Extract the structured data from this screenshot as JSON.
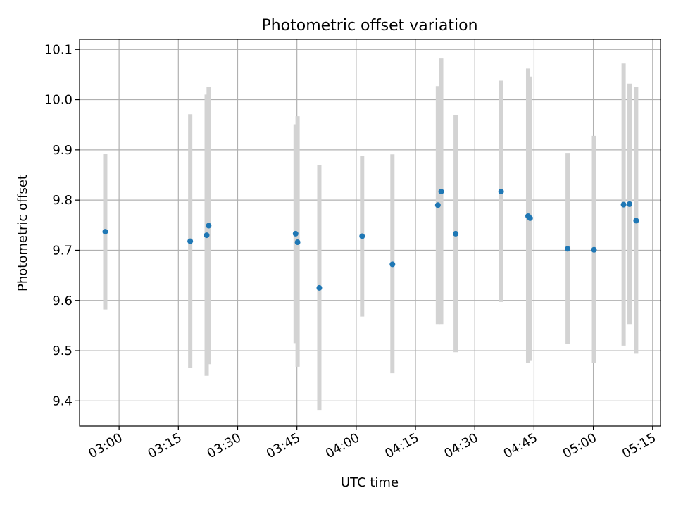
{
  "chart_data": {
    "type": "scatter",
    "title": "Photometric offset variation",
    "xlabel": "UTC time",
    "ylabel": "Photometric offset",
    "grid": true,
    "legend": "none",
    "x_range": [
      "02:50",
      "05:17"
    ],
    "ylim": [
      9.35,
      10.12
    ],
    "x_ticks": [
      "03:00",
      "03:15",
      "03:30",
      "03:45",
      "04:00",
      "04:15",
      "04:30",
      "04:45",
      "05:00",
      "05:15"
    ],
    "y_ticks": [
      "9.4",
      "9.5",
      "9.6",
      "9.7",
      "9.8",
      "9.9",
      "10.0",
      "10.1"
    ],
    "colors": {
      "point": "#1f77b4",
      "errorbar": "#d3d3d3",
      "grid": "#b0b0b0"
    },
    "points": [
      {
        "x": "02:56:30",
        "y": 9.737,
        "ylow": 9.582,
        "yhigh": 9.892
      },
      {
        "x": "03:18:00",
        "y": 9.718,
        "ylow": 9.465,
        "yhigh": 9.971
      },
      {
        "x": "03:22:10",
        "y": 9.73,
        "ylow": 9.45,
        "yhigh": 10.01
      },
      {
        "x": "03:22:40",
        "y": 9.749,
        "ylow": 9.473,
        "yhigh": 10.025
      },
      {
        "x": "03:44:40",
        "y": 9.733,
        "ylow": 9.515,
        "yhigh": 9.951
      },
      {
        "x": "03:45:10",
        "y": 9.716,
        "ylow": 9.468,
        "yhigh": 9.967
      },
      {
        "x": "03:50:40",
        "y": 9.625,
        "ylow": 9.382,
        "yhigh": 9.869
      },
      {
        "x": "04:01:30",
        "y": 9.728,
        "ylow": 9.568,
        "yhigh": 9.888
      },
      {
        "x": "04:09:10",
        "y": 9.672,
        "ylow": 9.455,
        "yhigh": 9.891
      },
      {
        "x": "04:20:40",
        "y": 9.79,
        "ylow": 9.553,
        "yhigh": 10.027
      },
      {
        "x": "04:21:30",
        "y": 9.817,
        "ylow": 9.553,
        "yhigh": 10.082
      },
      {
        "x": "04:25:10",
        "y": 9.733,
        "ylow": 9.497,
        "yhigh": 9.97
      },
      {
        "x": "04:36:40",
        "y": 9.817,
        "ylow": 9.597,
        "yhigh": 10.038
      },
      {
        "x": "04:43:30",
        "y": 9.768,
        "ylow": 9.475,
        "yhigh": 10.062
      },
      {
        "x": "04:44:00",
        "y": 9.764,
        "ylow": 9.481,
        "yhigh": 10.046
      },
      {
        "x": "04:53:30",
        "y": 9.703,
        "ylow": 9.513,
        "yhigh": 9.894
      },
      {
        "x": "05:00:10",
        "y": 9.701,
        "ylow": 9.475,
        "yhigh": 9.928
      },
      {
        "x": "05:07:40",
        "y": 9.791,
        "ylow": 9.51,
        "yhigh": 10.072
      },
      {
        "x": "05:09:10",
        "y": 9.792,
        "ylow": 9.553,
        "yhigh": 10.032
      },
      {
        "x": "05:10:50",
        "y": 9.759,
        "ylow": 9.494,
        "yhigh": 10.025
      }
    ]
  }
}
